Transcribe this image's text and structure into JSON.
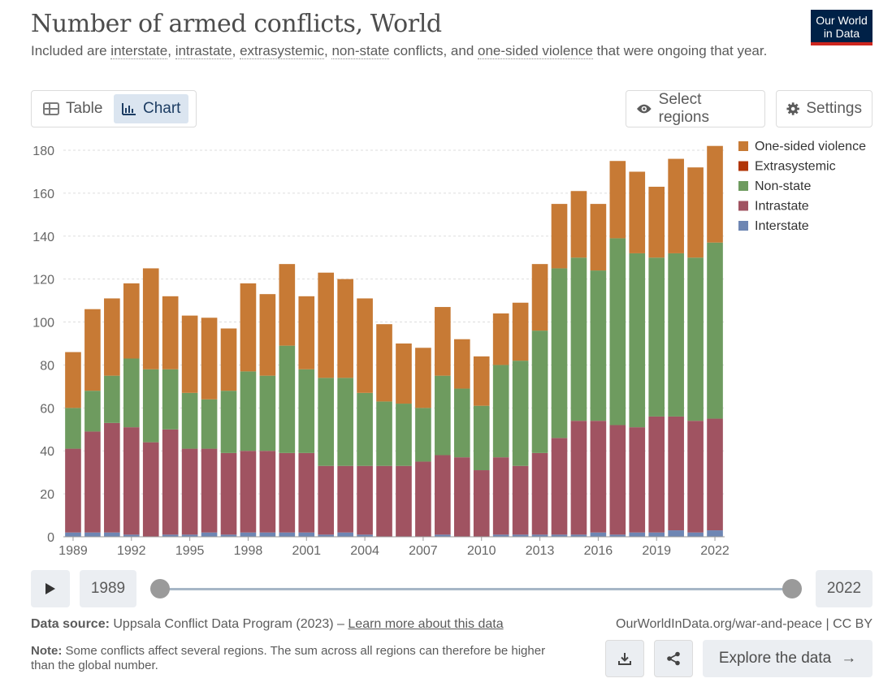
{
  "header": {
    "title": "Number of armed conflicts, World",
    "subtitle_parts": [
      {
        "text": "Included are ",
        "term": false
      },
      {
        "text": "interstate",
        "term": true
      },
      {
        "text": ", ",
        "term": false
      },
      {
        "text": "intrastate",
        "term": true
      },
      {
        "text": ", ",
        "term": false
      },
      {
        "text": "extrasystemic",
        "term": true
      },
      {
        "text": ", ",
        "term": false
      },
      {
        "text": "non-state",
        "term": true
      },
      {
        "text": " conflicts, and ",
        "term": false
      },
      {
        "text": "one-sided violence",
        "term": true
      },
      {
        "text": " that were ongoing that year.",
        "term": false
      }
    ],
    "logo_line1": "Our World",
    "logo_line2": "in Data"
  },
  "controls": {
    "table_label": "Table",
    "chart_label": "Chart",
    "select_regions_label": "Select regions",
    "settings_label": "Settings"
  },
  "timeline": {
    "start_year": "1989",
    "end_year": "2022"
  },
  "footer": {
    "source_label": "Data source:",
    "source_text": "Uppsala Conflict Data Program (2023) –",
    "source_link": "Learn more about this data",
    "site": "OurWorldInData.org/war-and-peace | CC BY",
    "note_label": "Note:",
    "note_text": "Some conflicts affect several regions. The sum across all regions can therefore be higher than the global number.",
    "explore_label": "Explore the data"
  },
  "colors": {
    "one_sided": "#c77a35",
    "extrasystemic": "#b13507",
    "non_state": "#6e9b5f",
    "intrastate": "#a05361",
    "interstate": "#6e86b3",
    "grid": "#dddddd",
    "axis_text": "#666666"
  },
  "chart_data": {
    "type": "bar",
    "stacked": true,
    "x": [
      1989,
      1990,
      1991,
      1992,
      1993,
      1994,
      1995,
      1996,
      1997,
      1998,
      1999,
      2000,
      2001,
      2002,
      2003,
      2004,
      2005,
      2006,
      2007,
      2008,
      2009,
      2010,
      2011,
      2012,
      2013,
      2014,
      2015,
      2016,
      2017,
      2018,
      2019,
      2020,
      2021,
      2022
    ],
    "xticks": [
      "1989",
      "1992",
      "1995",
      "1998",
      "2001",
      "2004",
      "2007",
      "2010",
      "2013",
      "2016",
      "2019",
      "2022"
    ],
    "yticks": [
      "0",
      "20",
      "40",
      "60",
      "80",
      "100",
      "120",
      "140",
      "160",
      "180"
    ],
    "ylim": [
      0,
      180
    ],
    "grid": "horizontal dashed",
    "legend_position": "right",
    "series": [
      {
        "name": "Interstate",
        "color_key": "interstate",
        "values": [
          2,
          2,
          2,
          1,
          0,
          1,
          1,
          2,
          1,
          2,
          2,
          2,
          2,
          1,
          2,
          1,
          0,
          0,
          0,
          1,
          0,
          0,
          1,
          1,
          1,
          1,
          1,
          2,
          1,
          2,
          2,
          3,
          2,
          3
        ]
      },
      {
        "name": "Intrastate",
        "color_key": "intrastate",
        "values": [
          39,
          47,
          51,
          50,
          44,
          49,
          40,
          39,
          38,
          38,
          38,
          37,
          37,
          32,
          31,
          32,
          33,
          33,
          35,
          37,
          37,
          31,
          36,
          32,
          38,
          45,
          53,
          52,
          51,
          49,
          54,
          53,
          52,
          52
        ]
      },
      {
        "name": "Extrasystemic",
        "color_key": "extrasystemic",
        "values": [
          0,
          0,
          0,
          0,
          0,
          0,
          0,
          0,
          0,
          0,
          0,
          0,
          0,
          0,
          0,
          0,
          0,
          0,
          0,
          0,
          0,
          0,
          0,
          0,
          0,
          0,
          0,
          0,
          0,
          0,
          0,
          0,
          0,
          0
        ]
      },
      {
        "name": "Non-state",
        "color_key": "non_state",
        "values": [
          19,
          19,
          22,
          32,
          34,
          28,
          26,
          23,
          29,
          37,
          35,
          50,
          39,
          41,
          41,
          34,
          30,
          29,
          25,
          37,
          32,
          30,
          43,
          49,
          57,
          79,
          76,
          70,
          87,
          81,
          74,
          76,
          76,
          82
        ]
      },
      {
        "name": "One-sided violence",
        "color_key": "one_sided",
        "values": [
          26,
          38,
          36,
          35,
          47,
          34,
          36,
          38,
          29,
          41,
          38,
          38,
          34,
          49,
          46,
          44,
          36,
          28,
          28,
          32,
          23,
          23,
          24,
          27,
          31,
          30,
          31,
          31,
          36,
          38,
          33,
          44,
          42,
          45
        ]
      }
    ],
    "legend_order": [
      "One-sided violence",
      "Extrasystemic",
      "Non-state",
      "Intrastate",
      "Interstate"
    ]
  }
}
